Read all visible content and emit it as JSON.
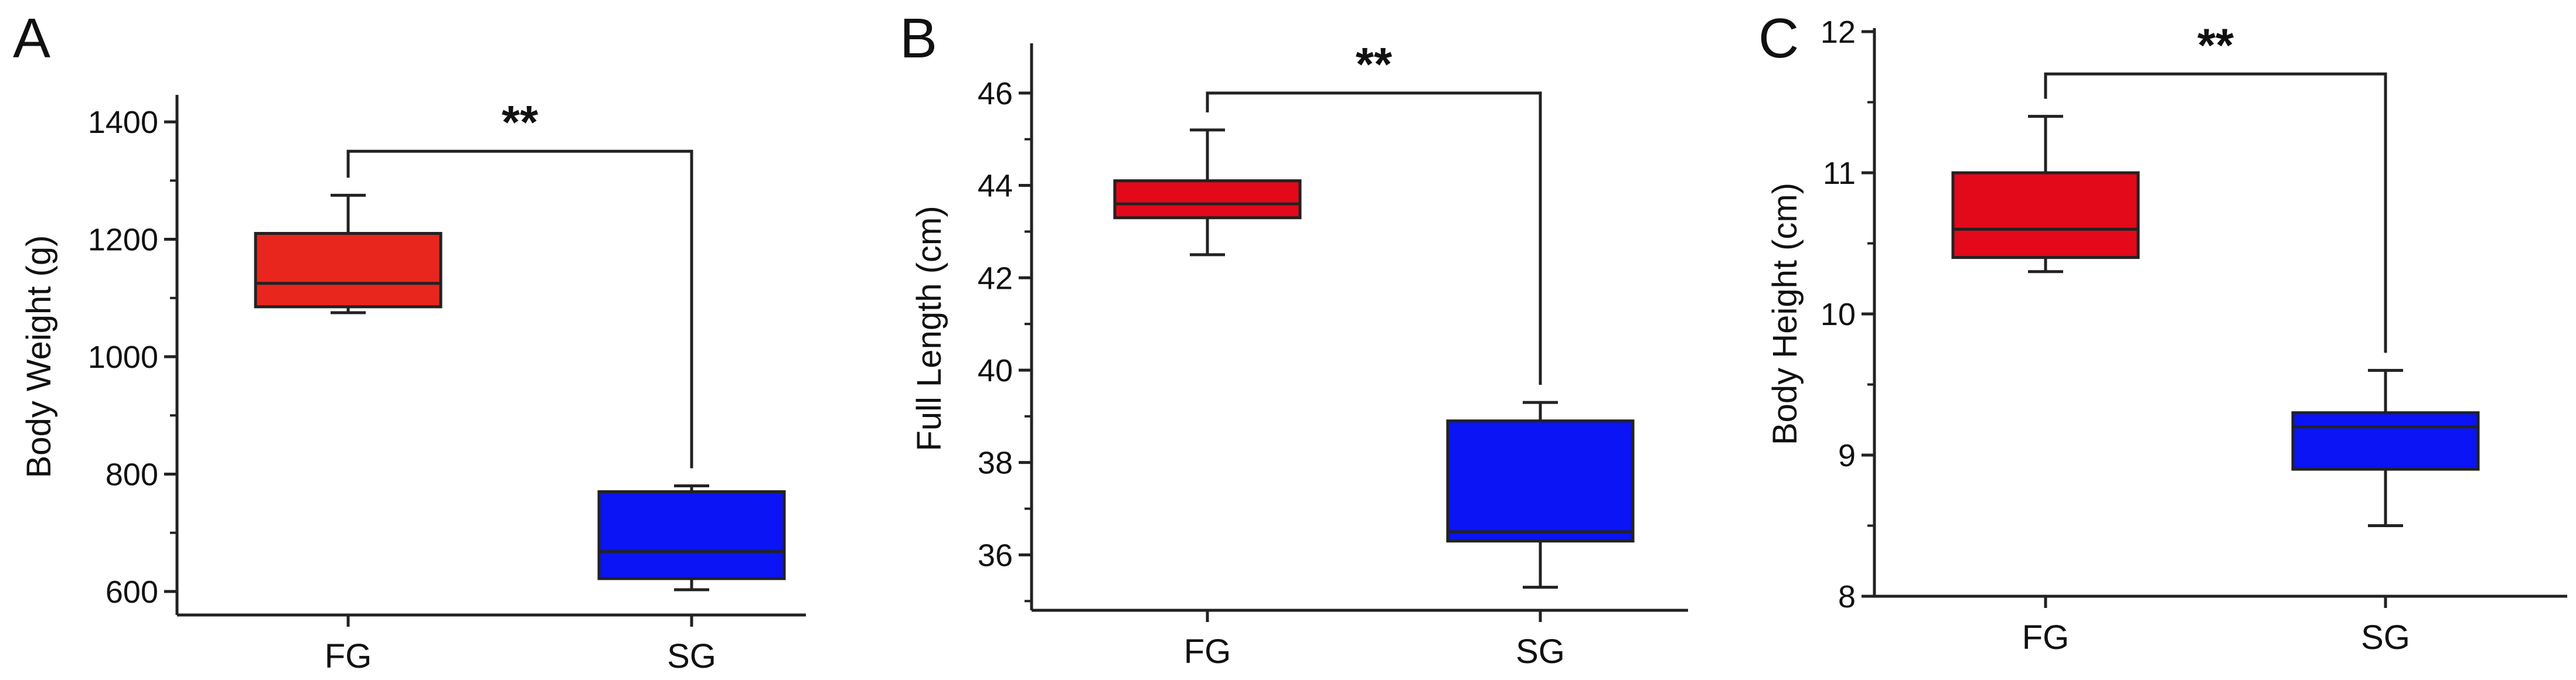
{
  "chart_data": [
    {
      "type": "box",
      "panel_label": "A",
      "ylabel": "Body Weight (g)",
      "categories": [
        "FG",
        "SG"
      ],
      "ylim": [
        560,
        1440
      ],
      "yticks": [
        600,
        800,
        1000,
        1200,
        1400
      ],
      "ytick_labels": [
        "600",
        "800",
        "1000",
        "1200",
        "1400"
      ],
      "boxes": [
        {
          "name": "FG",
          "whisker_low": 1075,
          "q1": 1085,
          "median": 1125,
          "q3": 1210,
          "whisker_high": 1275,
          "color": "#e8261e"
        },
        {
          "name": "SG",
          "whisker_low": 603,
          "q1": 622,
          "median": 668,
          "q3": 770,
          "whisker_high": 780,
          "color": "#0a14f5"
        }
      ],
      "significance": {
        "label": "**",
        "bracket_y": 1350
      }
    },
    {
      "type": "box",
      "panel_label": "B",
      "ylabel": "Full Length (cm)",
      "categories": [
        "FG",
        "SG"
      ],
      "ylim": [
        34.8,
        47.0
      ],
      "yticks": [
        36,
        38,
        40,
        42,
        44,
        46
      ],
      "ytick_labels": [
        "36",
        "38",
        "40",
        "42",
        "44",
        "46"
      ],
      "boxes": [
        {
          "name": "FG",
          "whisker_low": 42.5,
          "q1": 43.3,
          "median": 43.6,
          "q3": 44.1,
          "whisker_high": 45.2,
          "color": "#e3081a"
        },
        {
          "name": "SG",
          "whisker_low": 35.3,
          "q1": 36.3,
          "median": 36.5,
          "q3": 38.9,
          "whisker_high": 39.3,
          "color": "#0a14f5"
        }
      ],
      "significance": {
        "label": "**",
        "bracket_y": 46.0
      }
    },
    {
      "type": "box",
      "panel_label": "C",
      "ylabel": "Body Height (cm)",
      "categories": [
        "FG",
        "SG"
      ],
      "ylim": [
        8.0,
        12.0
      ],
      "yticks": [
        8,
        9,
        10,
        11,
        12
      ],
      "ytick_labels": [
        "8",
        "9",
        "10",
        "11",
        "12"
      ],
      "boxes": [
        {
          "name": "FG",
          "whisker_low": 10.3,
          "q1": 10.4,
          "median": 10.6,
          "q3": 11.0,
          "whisker_high": 11.4,
          "color": "#e3081a"
        },
        {
          "name": "SG",
          "whisker_low": 8.5,
          "q1": 8.9,
          "median": 9.2,
          "q3": 9.3,
          "whisker_high": 9.6,
          "color": "#0a14f5"
        }
      ],
      "significance": {
        "label": "**",
        "bracket_y": 11.7
      }
    }
  ]
}
